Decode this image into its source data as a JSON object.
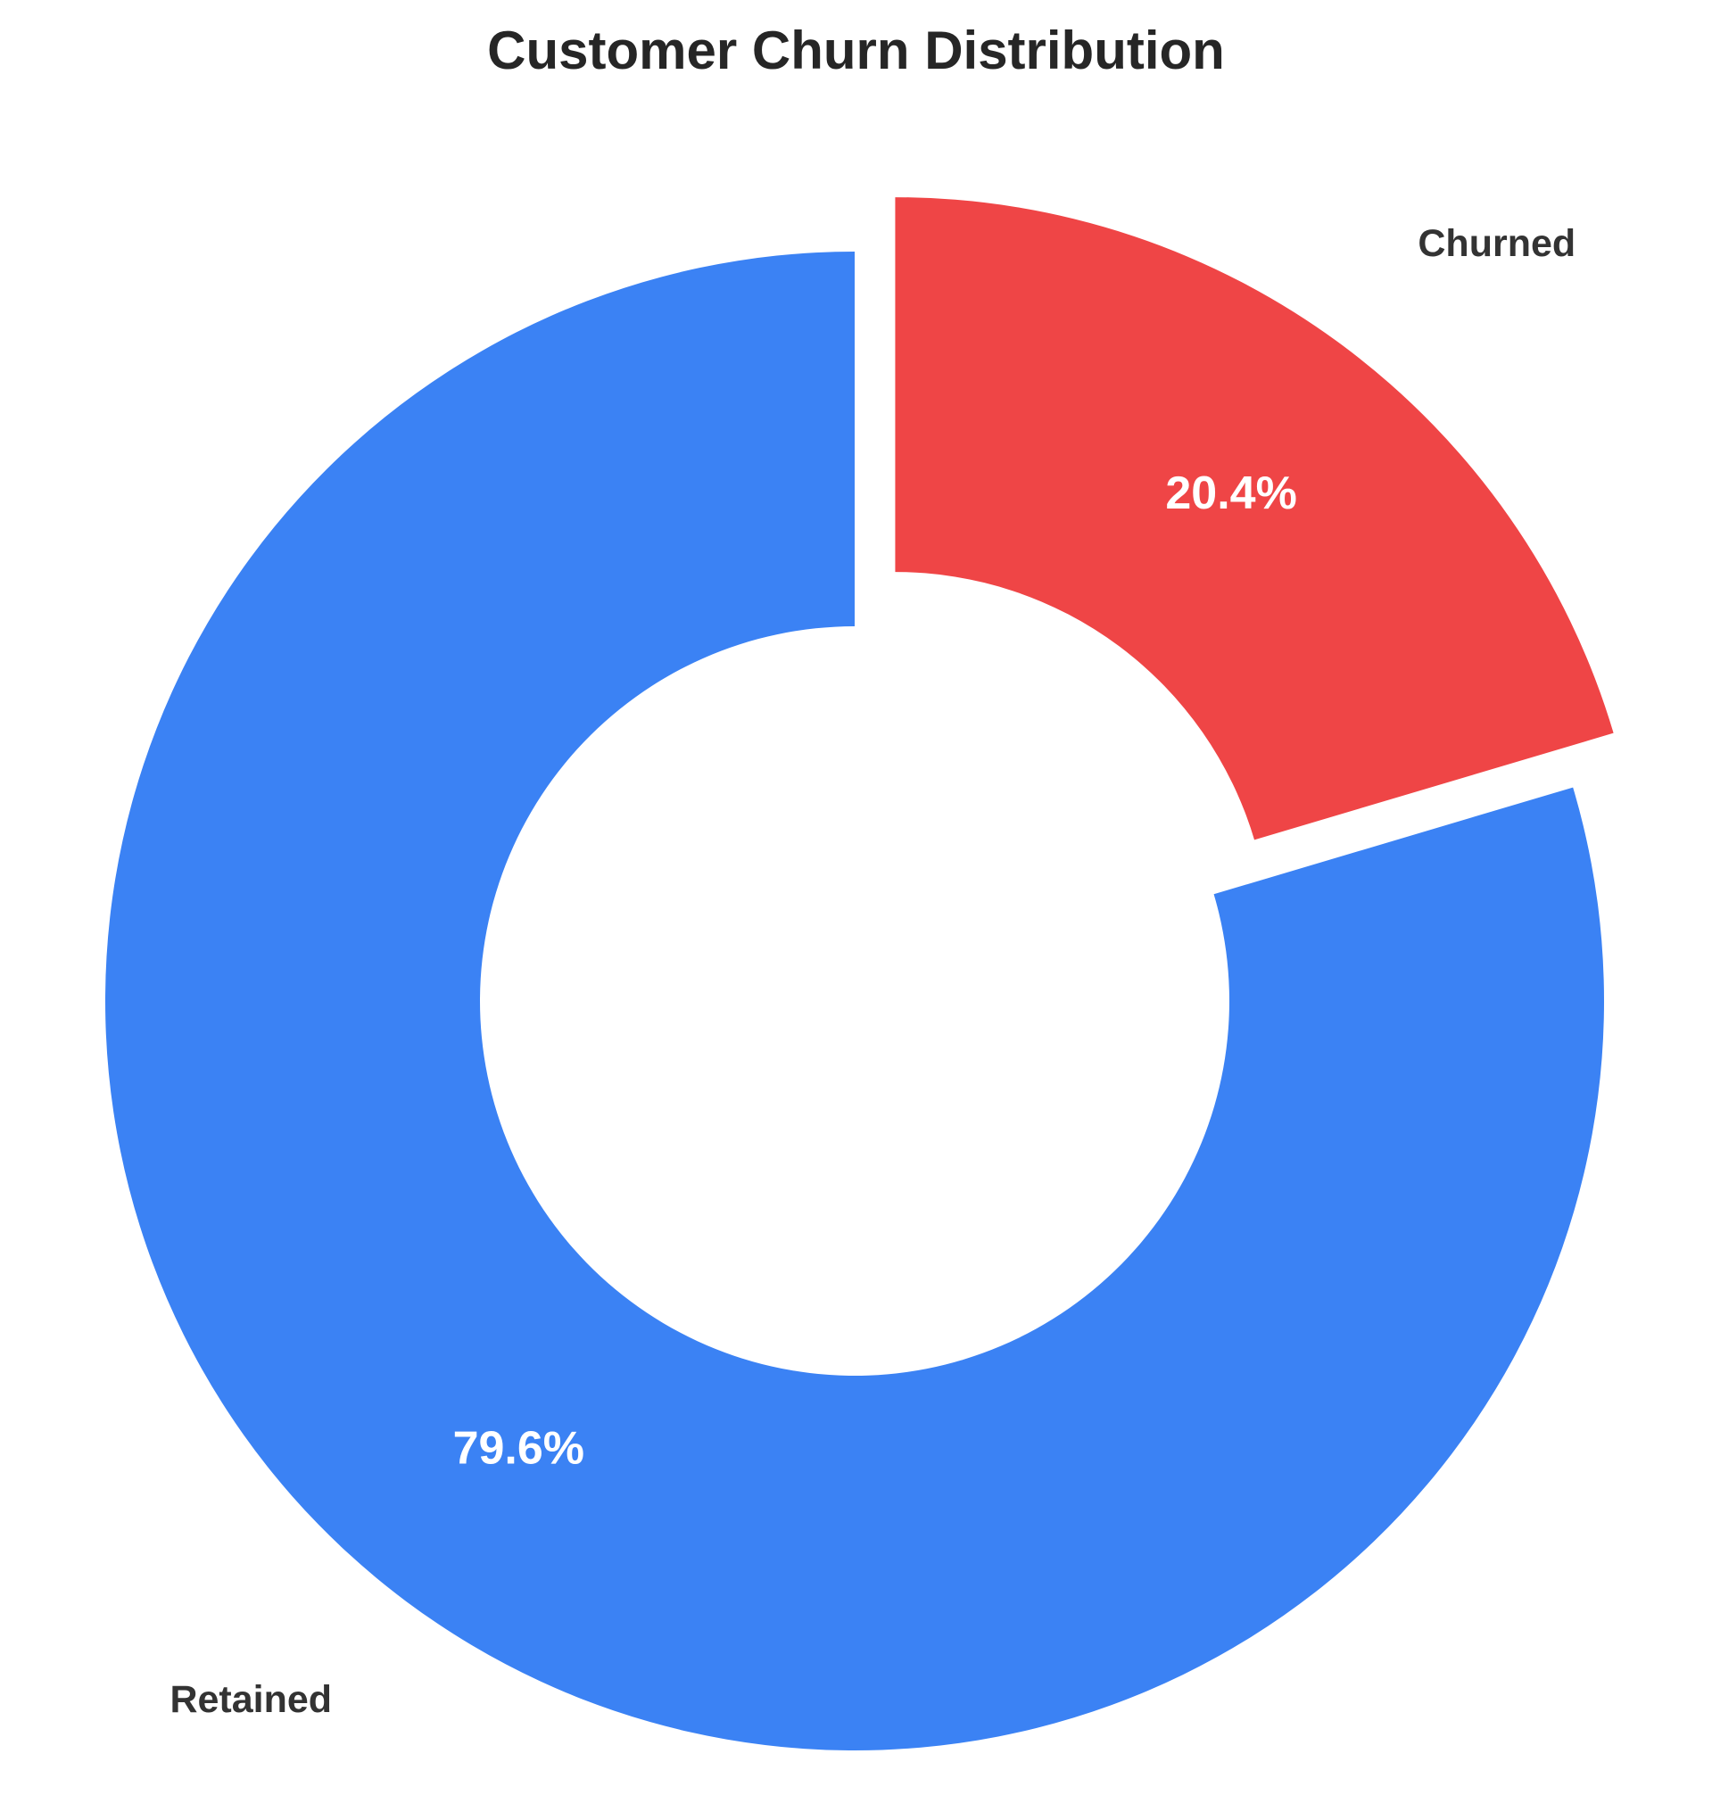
{
  "chart_data": {
    "type": "pie",
    "title": "Customer Churn Distribution",
    "donut": true,
    "start_angle_deg": 90,
    "direction": "counterclockwise",
    "slices": [
      {
        "label": "Retained",
        "value": 79.6,
        "pct_label": "79.6%",
        "color": "#3b82f4",
        "exploded": false
      },
      {
        "label": "Churned",
        "value": 20.4,
        "pct_label": "20.4%",
        "color": "#ef4546",
        "exploded": true
      }
    ],
    "legend": "none"
  }
}
